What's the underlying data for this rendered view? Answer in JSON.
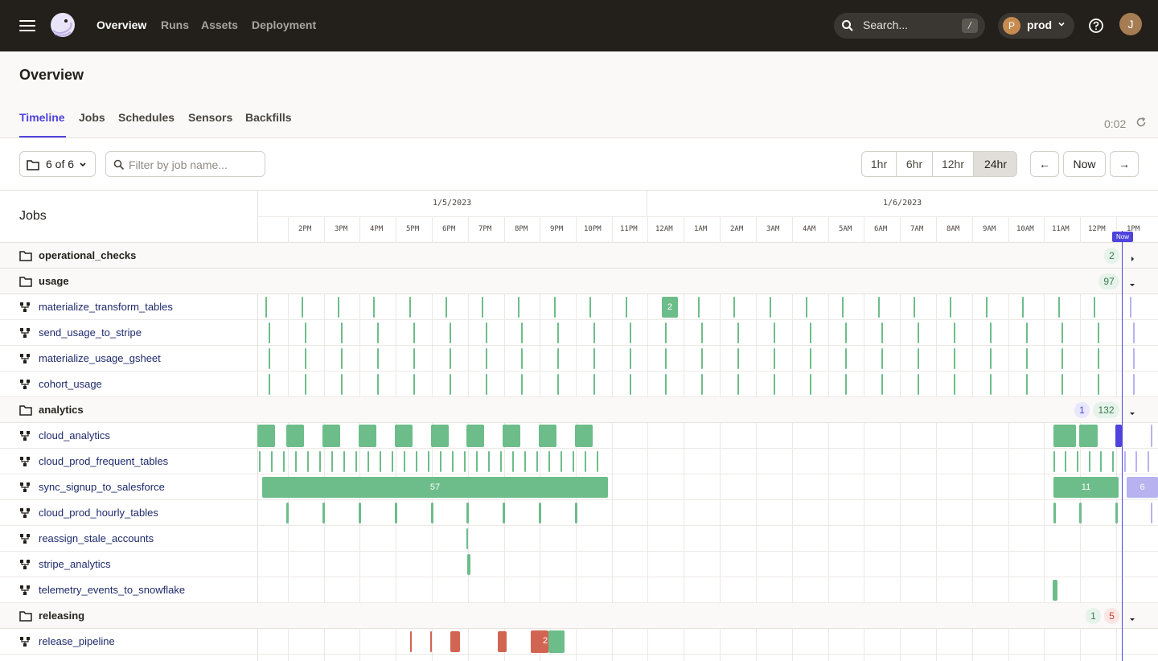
{
  "nav": {
    "links": [
      "Overview",
      "Runs",
      "Assets",
      "Deployment"
    ],
    "search_placeholder": "Search...",
    "search_shortcut": "/",
    "deployment_initial": "P",
    "deployment_name": "prod",
    "user_initial": "J"
  },
  "page": {
    "title": "Overview",
    "tabs": [
      "Timeline",
      "Jobs",
      "Schedules",
      "Sensors",
      "Backfills"
    ],
    "active_tab": "Timeline",
    "refresh_countdown": "0:02"
  },
  "toolbar": {
    "repo_filter": "6 of 6",
    "job_filter_placeholder": "Filter by job name...",
    "ranges": [
      "1hr",
      "6hr",
      "12hr",
      "24hr"
    ],
    "selected_range": "24hr",
    "prev": "←",
    "now": "Now",
    "next": "→"
  },
  "timeline": {
    "jobs_header": "Jobs",
    "dates": [
      "1/5/2023",
      "1/6/2023"
    ],
    "hours": [
      "2PM",
      "3PM",
      "4PM",
      "5PM",
      "6PM",
      "7PM",
      "8PM",
      "9PM",
      "10PM",
      "11PM",
      "12AM",
      "1AM",
      "2AM",
      "3AM",
      "4AM",
      "5AM",
      "6AM",
      "7AM",
      "8AM",
      "9AM",
      "10AM",
      "11AM",
      "12PM",
      "1PM"
    ],
    "now_label": "Now",
    "groups": [
      {
        "name": "operational_checks",
        "expanded": false,
        "counts": [
          {
            "type": "green",
            "value": "2"
          }
        ],
        "jobs": []
      },
      {
        "name": "usage",
        "expanded": true,
        "counts": [
          {
            "type": "green",
            "value": "97"
          }
        ],
        "jobs": [
          "materialize_transform_tables",
          "send_usage_to_stripe",
          "materialize_usage_gsheet",
          "cohort_usage"
        ]
      },
      {
        "name": "analytics",
        "expanded": true,
        "counts": [
          {
            "type": "blue",
            "value": "1"
          },
          {
            "type": "green",
            "value": "132"
          }
        ],
        "jobs": [
          "cloud_analytics",
          "cloud_prod_frequent_tables",
          "sync_signup_to_salesforce",
          "cloud_prod_hourly_tables",
          "reassign_stale_accounts",
          "stripe_analytics",
          "telemetry_events_to_snowflake"
        ]
      },
      {
        "name": "releasing",
        "expanded": true,
        "counts": [
          {
            "type": "green",
            "value": "1"
          },
          {
            "type": "red",
            "value": "5"
          }
        ],
        "jobs": [
          "release_pipeline"
        ]
      }
    ],
    "bar_labels": {
      "materialize_transform_tables_batch": "2",
      "sync_signup_to_salesforce_day1": "57",
      "sync_signup_to_salesforce_day2": "11",
      "sync_signup_to_salesforce_scheduled": "6",
      "release_pipeline_batch": "2"
    }
  },
  "colors": {
    "success": "#6dbd8b",
    "failure": "#d26551",
    "running": "#4f43dd",
    "scheduled": "#b8b2f0",
    "accent": "#4f43dd"
  }
}
